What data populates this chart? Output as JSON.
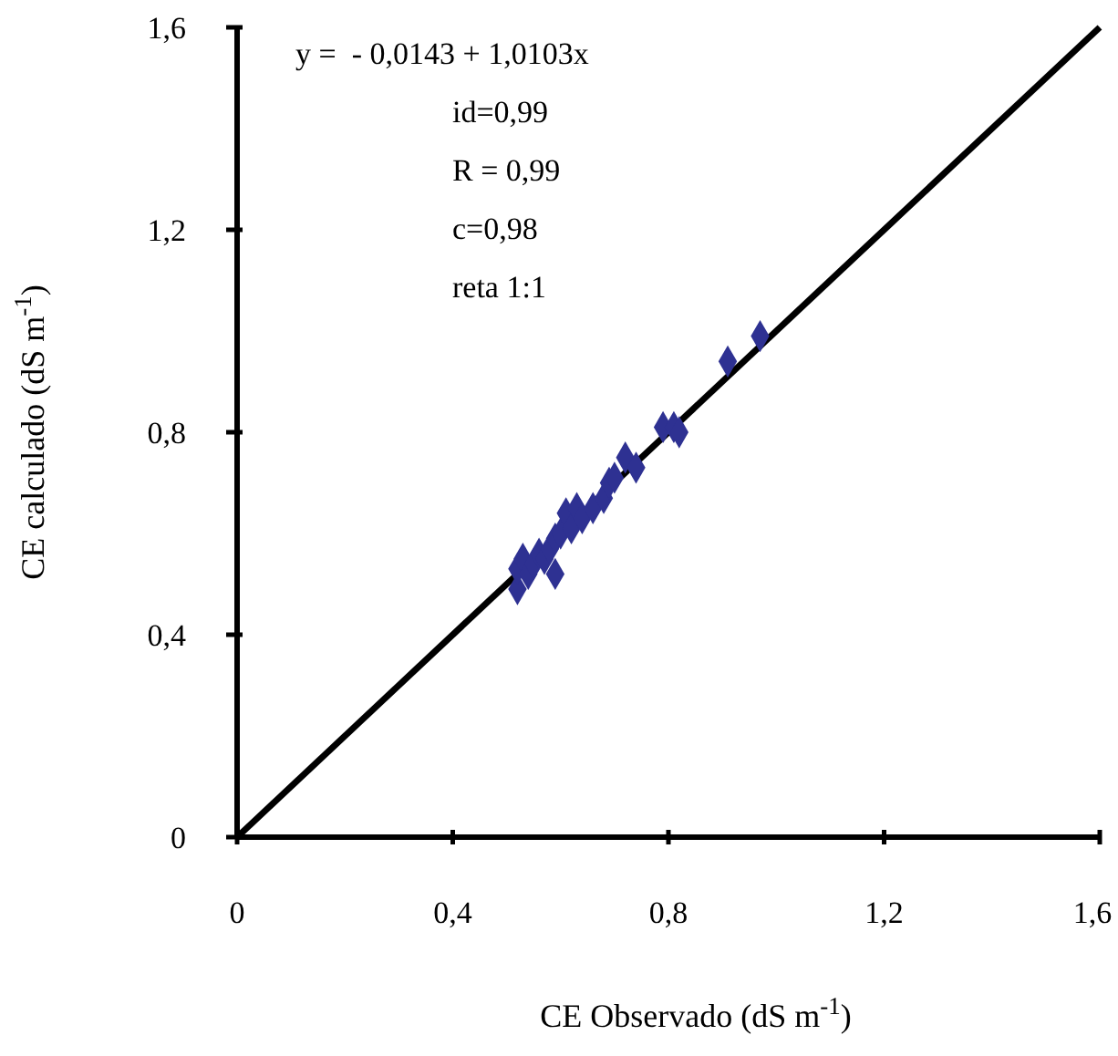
{
  "chart_data": {
    "type": "scatter",
    "xlabel": "CE Observado (dS m$^{-1}$)",
    "ylabel": "CE calculado (dS m$^{-1}$)",
    "xlim": [
      0,
      1.6
    ],
    "ylim": [
      0,
      1.6
    ],
    "xticks": [
      0,
      {
        "value": 0.4,
        "label": "0,4"
      },
      {
        "value": 0.8,
        "label": "0,8"
      },
      {
        "value": 1.2,
        "label": "1,2"
      },
      {
        "value": 1.6,
        "label": "1,6"
      }
    ],
    "yticks": [
      0,
      {
        "value": 0.4,
        "label": "0,4"
      },
      {
        "value": 0.8,
        "label": "0,8"
      },
      {
        "value": 1.2,
        "label": "1,2"
      },
      {
        "value": 1.6,
        "label": "1,6"
      }
    ],
    "grid": false,
    "annotations": [
      "y =  - 0,0143 + 1,0103x",
      "id=0,99",
      "R = 0,99",
      "c=0,98",
      "reta 1:1"
    ],
    "series": [
      {
        "marker": "diamond",
        "color": "#2e3192",
        "x": [
          0.52,
          0.52,
          0.53,
          0.54,
          0.55,
          0.56,
          0.57,
          0.58,
          0.59,
          0.59,
          0.6,
          0.61,
          0.62,
          0.63,
          0.64,
          0.66,
          0.68,
          0.69,
          0.7,
          0.72,
          0.74,
          0.79,
          0.81,
          0.82,
          0.91,
          0.97
        ],
        "values": [
          0.49,
          0.53,
          0.55,
          0.52,
          0.54,
          0.56,
          0.55,
          0.57,
          0.52,
          0.59,
          0.6,
          0.64,
          0.61,
          0.65,
          0.63,
          0.65,
          0.67,
          0.7,
          0.71,
          0.75,
          0.73,
          0.81,
          0.81,
          0.8,
          0.94,
          0.99
        ]
      },
      {
        "type": "line",
        "color": "#000000",
        "line_style": "solid",
        "x": [
          0,
          1.6
        ],
        "values": [
          0,
          1.6
        ]
      }
    ]
  }
}
